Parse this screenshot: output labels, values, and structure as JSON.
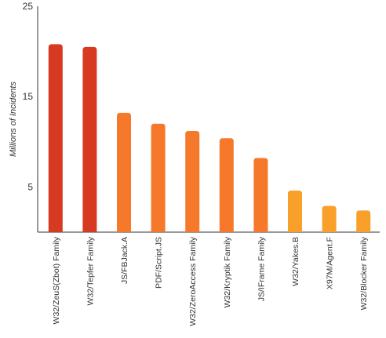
{
  "chart_data": {
    "type": "bar",
    "ylabel": "Millions of Incidents",
    "ylim": [
      0,
      25
    ],
    "yticks": [
      5,
      15,
      25
    ],
    "grid": false,
    "categories": [
      "W32/ZeuS(Zbot) Family",
      "W32/Tepfer Family",
      "JS/FBJack.A",
      "PDF/Script.JS",
      "W32/ZeroAccess Family",
      "W32/Kryptik Family",
      "JS/IFrame Family",
      "W32/Yakes.B",
      "X97M/Agent.F",
      "W32/Blocker Family"
    ],
    "values": [
      20.8,
      20.5,
      13.2,
      12.0,
      11.2,
      10.4,
      8.2,
      4.6,
      2.9,
      2.4
    ],
    "bar_colors": [
      "#d63b22",
      "#d63b22",
      "#f6782b",
      "#f6782b",
      "#f6782b",
      "#f6782b",
      "#f6782b",
      "#f8a02a",
      "#f8a02a",
      "#f8a02a"
    ]
  }
}
